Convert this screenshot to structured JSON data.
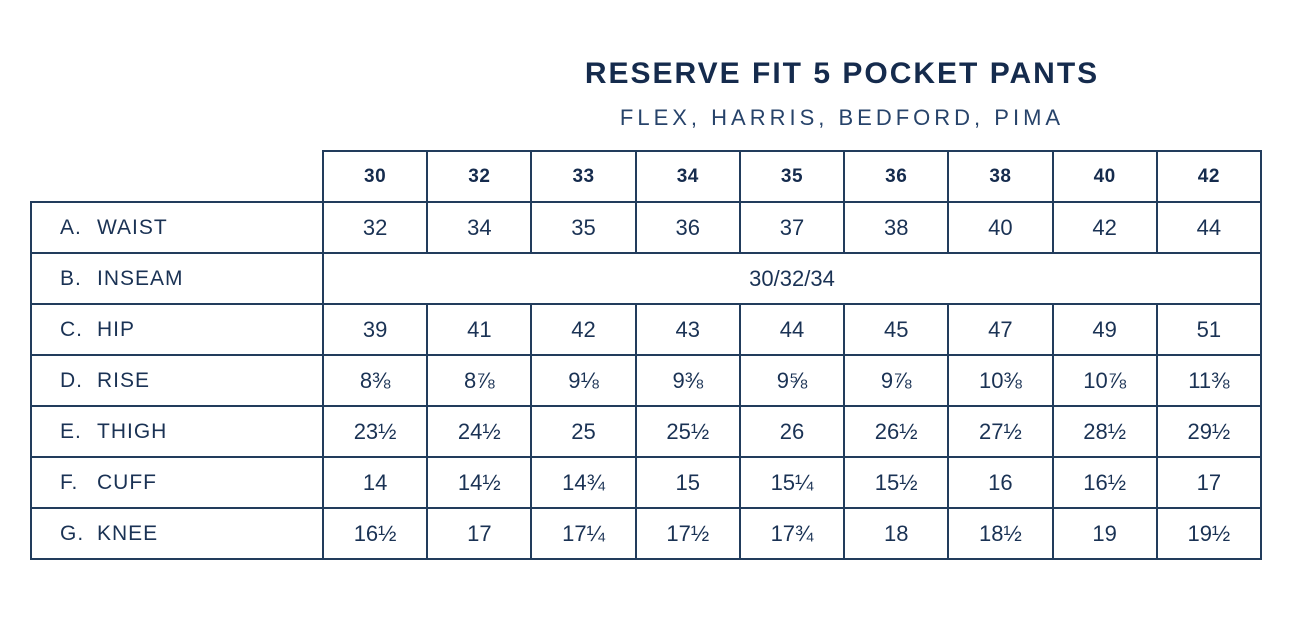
{
  "header": {
    "title": "RESERVE FIT 5 POCKET PANTS",
    "subtitle": "FLEX, HARRIS, BEDFORD, PIMA"
  },
  "colors": {
    "background": "#ffffff",
    "title_navy": "#152b4d",
    "text_navy": "#1a3254",
    "table_border": "#223c5c"
  },
  "size_chart": {
    "type": "table",
    "columns": [
      "30",
      "32",
      "33",
      "34",
      "35",
      "36",
      "38",
      "40",
      "42"
    ],
    "rows": [
      {
        "letter": "A.",
        "name": "WAIST",
        "values": [
          "32",
          "34",
          "35",
          "36",
          "37",
          "38",
          "40",
          "42",
          "44"
        ]
      },
      {
        "letter": "B.",
        "name": "INSEAM",
        "merged_value": "30/32/34"
      },
      {
        "letter": "C.",
        "name": "HIP",
        "values": [
          "39",
          "41",
          "42",
          "43",
          "44",
          "45",
          "47",
          "49",
          "51"
        ]
      },
      {
        "letter": "D.",
        "name": "RISE",
        "values": [
          "8⅜",
          "8⅞",
          "9⅛",
          "9⅜",
          "9⅝",
          "9⅞",
          "10⅜",
          "10⅞",
          "11⅜"
        ]
      },
      {
        "letter": "E.",
        "name": "THIGH",
        "values": [
          "23½",
          "24½",
          "25",
          "25½",
          "26",
          "26½",
          "27½",
          "28½",
          "29½"
        ]
      },
      {
        "letter": "F.",
        "name": "CUFF",
        "values": [
          "14",
          "14½",
          "14¾",
          "15",
          "15¼",
          "15½",
          "16",
          "16½",
          "17"
        ]
      },
      {
        "letter": "G.",
        "name": "KNEE",
        "values": [
          "16½",
          "17",
          "17¼",
          "17½",
          "17¾",
          "18",
          "18½",
          "19",
          "19½"
        ]
      }
    ]
  }
}
